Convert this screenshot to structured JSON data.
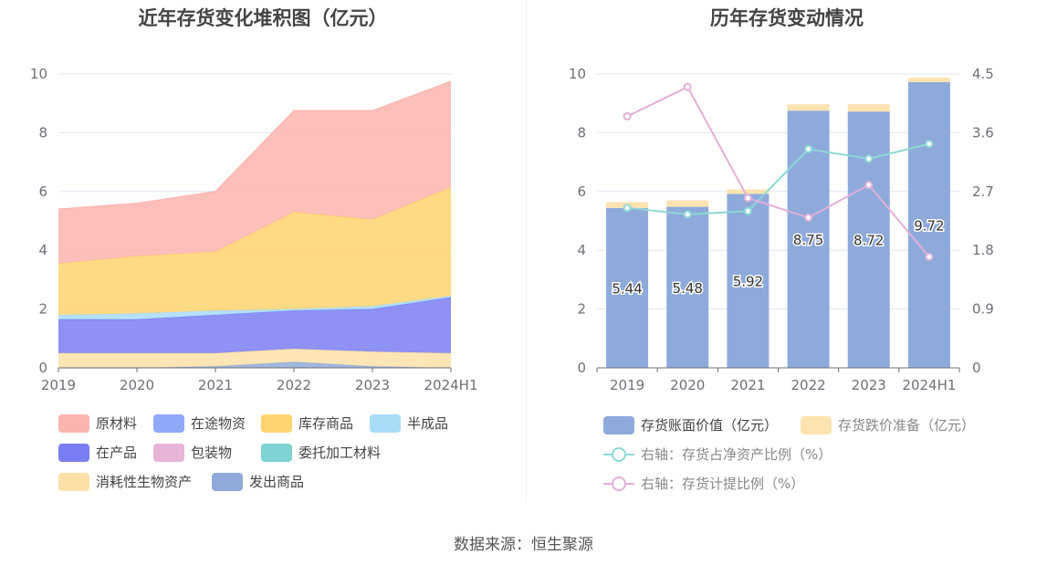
{
  "source": "数据来源：恒生聚源",
  "colors": {
    "原材料": "#fbb4ae",
    "在途物资": "#8fa8f8",
    "库存商品": "#ffd46e",
    "半成品": "#a8dcf7",
    "在产品": "#7b7ef2",
    "包装物": "#e8b4d8",
    "委托加工材料": "#7fd3d3",
    "消耗性生物资产": "#fde0a8",
    "发出商品": "#8faad8",
    "bar_book": "#8eaadb",
    "bar_reserve": "#fde3b2",
    "line_ratio": "#8dd8d4",
    "line_provision": "#e2afd8"
  },
  "chart_data": [
    {
      "type": "area",
      "title": "近年存货变化堆积图（亿元）",
      "categories": [
        "2019",
        "2020",
        "2021",
        "2022",
        "2023",
        "2024H1"
      ],
      "ylim": [
        0,
        10
      ],
      "yticks": [
        0,
        2,
        4,
        6,
        8,
        10
      ],
      "grid": true,
      "legend_position": "bottom",
      "series": [
        {
          "name": "原材料",
          "values": [
            1.85,
            1.8,
            2.05,
            3.45,
            3.7,
            3.6
          ]
        },
        {
          "name": "在途物资",
          "values": [
            0,
            0,
            0,
            0,
            0,
            0
          ]
        },
        {
          "name": "库存商品",
          "values": [
            1.75,
            1.95,
            2.0,
            3.3,
            2.95,
            3.7
          ]
        },
        {
          "name": "半成品",
          "values": [
            0.15,
            0.2,
            0.15,
            0.05,
            0.1,
            0.05
          ]
        },
        {
          "name": "在产品",
          "values": [
            1.15,
            1.15,
            1.3,
            1.3,
            1.45,
            1.9
          ]
        },
        {
          "name": "包装物",
          "values": [
            0,
            0,
            0,
            0,
            0,
            0
          ]
        },
        {
          "name": "委托加工材料",
          "values": [
            0,
            0,
            0,
            0,
            0,
            0
          ]
        },
        {
          "name": "消耗性生物资产",
          "values": [
            0.5,
            0.5,
            0.45,
            0.45,
            0.5,
            0.5
          ]
        },
        {
          "name": "发出商品",
          "values": [
            0,
            0,
            0.05,
            0.2,
            0.05,
            0
          ]
        }
      ]
    },
    {
      "type": "bar",
      "title": "历年存货变动情况",
      "categories": [
        "2019",
        "2020",
        "2021",
        "2022",
        "2023",
        "2024H1"
      ],
      "ylim": [
        0,
        10
      ],
      "yticks": [
        0,
        2,
        4,
        6,
        8,
        10
      ],
      "y2lim": [
        0,
        4.5
      ],
      "y2ticks": [
        "0",
        "0.9",
        "1.8",
        "2.7",
        "3.6",
        "4.5"
      ],
      "grid": true,
      "legend_position": "bottom",
      "series": [
        {
          "name": "存货账面价值（亿元）",
          "values": [
            5.44,
            5.48,
            5.92,
            8.75,
            8.72,
            9.72
          ],
          "labels": [
            "5.44",
            "5.48",
            "5.92",
            "8.75",
            "8.72",
            "9.72"
          ]
        },
        {
          "name": "存货跌价准备（亿元）",
          "values": [
            0.2,
            0.22,
            0.15,
            0.22,
            0.25,
            0.15
          ]
        },
        {
          "name": "右轴：存货占净资产比例（%）",
          "axis": "right",
          "values": [
            2.45,
            2.35,
            2.4,
            3.35,
            3.2,
            3.43
          ]
        },
        {
          "name": "右轴：存货计提比例（%）",
          "axis": "right",
          "values": [
            3.85,
            4.3,
            2.6,
            2.3,
            2.8,
            1.7
          ]
        }
      ]
    }
  ]
}
